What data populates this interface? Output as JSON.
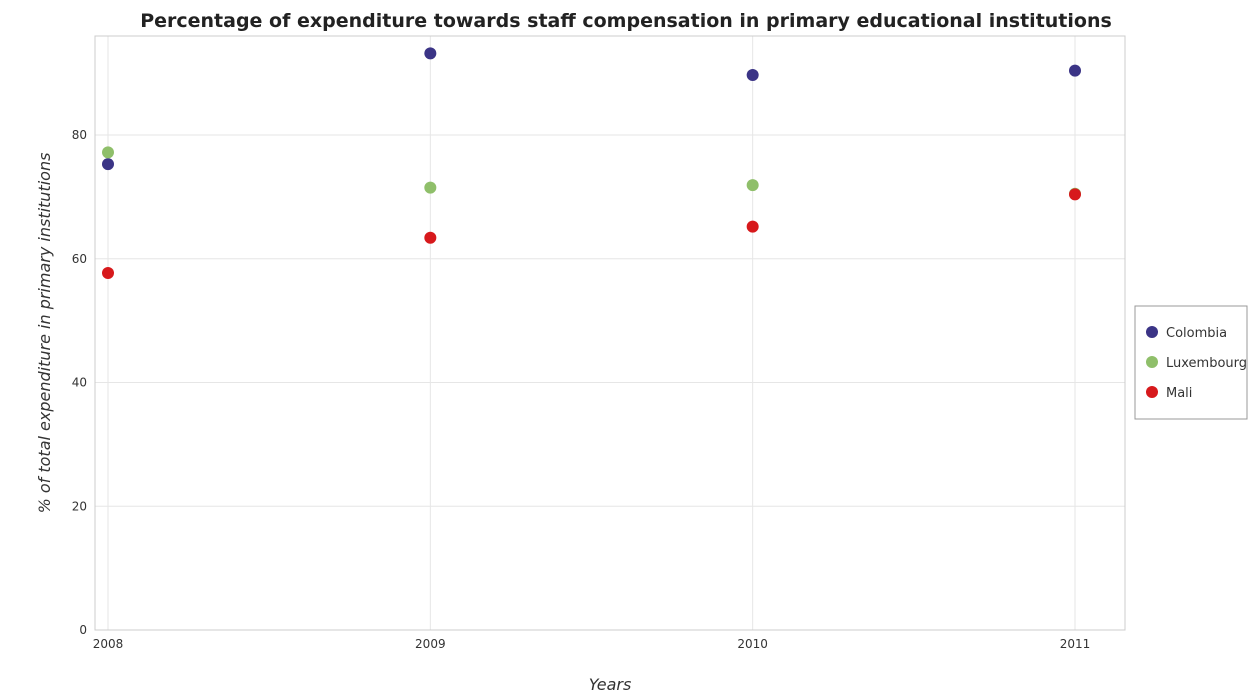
{
  "chart_data": {
    "type": "scatter",
    "title": "Percentage of expenditure towards staff compensation in primary educational institutions",
    "xlabel": "Years",
    "ylabel": "% of total expenditure in primary institutions",
    "categories": [
      "2008",
      "2009",
      "2010",
      "2011"
    ],
    "ylim": [
      0,
      96
    ],
    "yticks": [
      0,
      20,
      40,
      60,
      80
    ],
    "grid": true,
    "legend_position": "right",
    "series": [
      {
        "name": "Colombia",
        "color": "#3b3486",
        "values": [
          75.3,
          93.2,
          89.7,
          90.4
        ]
      },
      {
        "name": "Luxembourg",
        "color": "#8fbf6a",
        "values": [
          77.2,
          71.5,
          71.9,
          70.5
        ]
      },
      {
        "name": "Mali",
        "color": "#d7191c",
        "values": [
          57.7,
          63.4,
          65.2,
          70.4
        ]
      }
    ]
  }
}
